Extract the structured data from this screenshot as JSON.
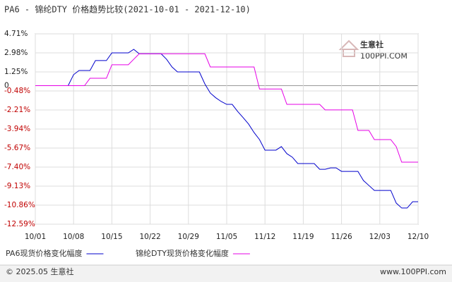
{
  "chart_data": {
    "type": "line",
    "title": "PA6 - 锦纶DTY 价格趋势比较(2021-10-01 - 2021-12-10)",
    "watermark": "生意社",
    "watermark_sub": "100PPI.COM",
    "footer_left": "© 2025.05 生意社",
    "footer_right": "www.100PPI.com",
    "x": [
      "10/01",
      "10/02",
      "10/03",
      "10/04",
      "10/05",
      "10/06",
      "10/07",
      "10/08",
      "10/09",
      "10/10",
      "10/11",
      "10/12",
      "10/13",
      "10/14",
      "10/15",
      "10/16",
      "10/17",
      "10/18",
      "10/19",
      "10/20",
      "10/21",
      "10/22",
      "10/23",
      "10/24",
      "10/25",
      "10/26",
      "10/27",
      "10/28",
      "10/29",
      "10/30",
      "10/31",
      "11/01",
      "11/02",
      "11/03",
      "11/04",
      "11/05",
      "11/06",
      "11/07",
      "11/08",
      "11/09",
      "11/10",
      "11/11",
      "11/12",
      "11/13",
      "11/14",
      "11/15",
      "11/16",
      "11/17",
      "11/18",
      "11/19",
      "11/20",
      "11/21",
      "11/22",
      "11/23",
      "11/24",
      "11/25",
      "11/26",
      "11/27",
      "11/28",
      "11/29",
      "11/30",
      "12/01",
      "12/02",
      "12/03",
      "12/04",
      "12/05",
      "12/06",
      "12/07",
      "12/08",
      "12/09",
      "12/10"
    ],
    "xticks": [
      "10/01",
      "10/08",
      "10/15",
      "10/22",
      "10/29",
      "11/05",
      "11/12",
      "11/19",
      "11/26",
      "12/03",
      "12/10"
    ],
    "series": [
      {
        "name": "PA6现货价格变化幅度",
        "color": "#0000cc",
        "values": [
          0,
          0,
          0,
          0,
          0,
          0,
          0,
          1.0,
          1.38,
          1.38,
          1.38,
          2.28,
          2.28,
          2.28,
          2.98,
          2.98,
          2.98,
          2.98,
          3.3,
          2.9,
          2.9,
          2.9,
          2.9,
          2.9,
          2.4,
          1.7,
          1.25,
          1.25,
          1.25,
          1.25,
          1.25,
          0.16,
          -0.67,
          -1.1,
          -1.44,
          -1.7,
          -1.7,
          -2.34,
          -2.9,
          -3.49,
          -4.26,
          -4.9,
          -5.86,
          -5.86,
          -5.86,
          -5.54,
          -6.18,
          -6.5,
          -7.08,
          -7.08,
          -7.08,
          -7.08,
          -7.6,
          -7.6,
          -7.47,
          -7.47,
          -7.79,
          -7.79,
          -7.79,
          -7.79,
          -8.62,
          -9.07,
          -9.52,
          -9.52,
          -9.52,
          -9.52,
          -10.67,
          -11.12,
          -11.12,
          -10.55,
          -10.55
        ]
      },
      {
        "name": "锦纶DTY现货价格变化幅度",
        "color": "#e600e6",
        "values": [
          0,
          0,
          0,
          0,
          0,
          0,
          0,
          0,
          0,
          0,
          0.67,
          0.67,
          0.67,
          0.67,
          1.9,
          1.9,
          1.9,
          1.9,
          2.4,
          2.9,
          2.9,
          2.9,
          2.9,
          2.9,
          2.9,
          2.9,
          2.9,
          2.9,
          2.9,
          2.9,
          2.9,
          2.9,
          1.7,
          1.7,
          1.7,
          1.7,
          1.7,
          1.7,
          1.7,
          1.7,
          1.7,
          -0.3,
          -0.3,
          -0.3,
          -0.3,
          -0.3,
          -1.7,
          -1.7,
          -1.7,
          -1.7,
          -1.7,
          -1.7,
          -1.7,
          -2.2,
          -2.2,
          -2.2,
          -2.2,
          -2.2,
          -2.2,
          -4.07,
          -4.07,
          -4.07,
          -4.9,
          -4.9,
          -4.9,
          -4.9,
          -5.54,
          -6.95,
          -6.95,
          -6.95,
          -6.95
        ]
      }
    ],
    "ylim": [
      -12.59,
      4.71
    ],
    "yticks": [
      {
        "value": 4.71,
        "label": "4.71%"
      },
      {
        "value": 2.98,
        "label": "2.98%"
      },
      {
        "value": 1.25,
        "label": "1.25%"
      },
      0,
      {
        "value": -0.48,
        "label": "-0.48%"
      },
      {
        "value": -2.21,
        "label": "-2.21%"
      },
      {
        "value": -3.94,
        "label": "-3.94%"
      },
      {
        "value": -5.67,
        "label": "-5.67%"
      },
      {
        "value": -7.4,
        "label": "-7.40%"
      },
      {
        "value": -9.13,
        "label": "-9.13%"
      },
      {
        "value": -10.86,
        "label": "-10.86%"
      },
      {
        "value": -12.59,
        "label": "-12.59%"
      }
    ],
    "grid": true
  }
}
